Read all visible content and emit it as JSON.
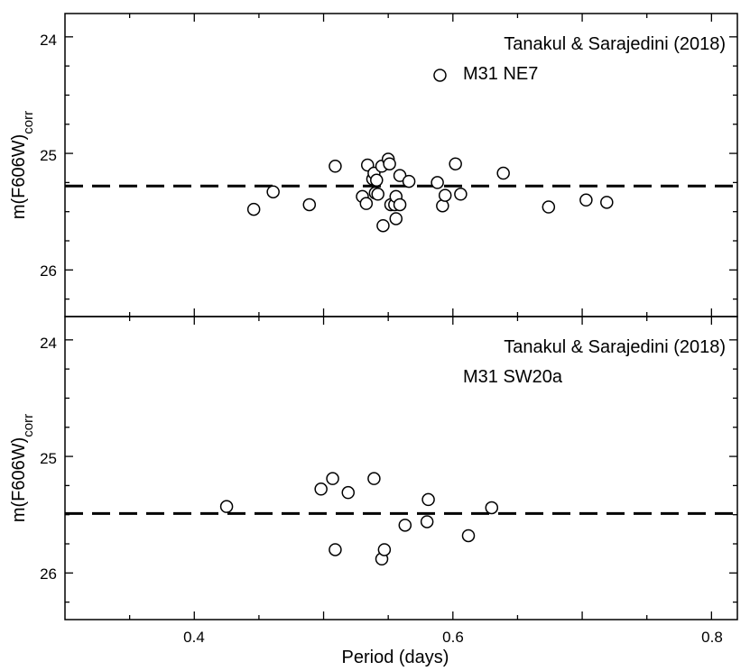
{
  "chart_data": [
    {
      "type": "scatter",
      "annotation_lines": [
        "Tanakul & Sarajedini (2018)",
        "M31 NE7"
      ],
      "ylabel": "m(F606W)",
      "ylabel_sub": "corr",
      "xlim": [
        0.3,
        0.82
      ],
      "ylim": [
        26.4,
        23.8
      ],
      "y_inverted": true,
      "y_ticks": [
        24,
        25,
        26
      ],
      "y_tick_labels": [
        "24",
        "25",
        "26"
      ],
      "reference_line": {
        "y": 25.28,
        "style": "dashed"
      },
      "marker": "open-circle",
      "series": [
        {
          "points": [
            {
              "x": 0.446,
              "y": 25.48
            },
            {
              "x": 0.461,
              "y": 25.33
            },
            {
              "x": 0.489,
              "y": 25.44
            },
            {
              "x": 0.509,
              "y": 25.11
            },
            {
              "x": 0.53,
              "y": 25.37
            },
            {
              "x": 0.533,
              "y": 25.43
            },
            {
              "x": 0.534,
              "y": 25.1
            },
            {
              "x": 0.538,
              "y": 25.22
            },
            {
              "x": 0.539,
              "y": 25.17
            },
            {
              "x": 0.54,
              "y": 25.34
            },
            {
              "x": 0.541,
              "y": 25.23
            },
            {
              "x": 0.542,
              "y": 25.35
            },
            {
              "x": 0.545,
              "y": 25.11
            },
            {
              "x": 0.546,
              "y": 25.62
            },
            {
              "x": 0.55,
              "y": 25.05
            },
            {
              "x": 0.551,
              "y": 25.09
            },
            {
              "x": 0.552,
              "y": 25.44
            },
            {
              "x": 0.555,
              "y": 25.44
            },
            {
              "x": 0.556,
              "y": 25.37
            },
            {
              "x": 0.556,
              "y": 25.56
            },
            {
              "x": 0.559,
              "y": 25.19
            },
            {
              "x": 0.559,
              "y": 25.44
            },
            {
              "x": 0.566,
              "y": 25.24
            },
            {
              "x": 0.588,
              "y": 25.25
            },
            {
              "x": 0.59,
              "y": 24.33
            },
            {
              "x": 0.592,
              "y": 25.45
            },
            {
              "x": 0.594,
              "y": 25.36
            },
            {
              "x": 0.602,
              "y": 25.09
            },
            {
              "x": 0.606,
              "y": 25.35
            },
            {
              "x": 0.639,
              "y": 25.17
            },
            {
              "x": 0.674,
              "y": 25.46
            },
            {
              "x": 0.703,
              "y": 25.4
            },
            {
              "x": 0.719,
              "y": 25.42
            }
          ]
        }
      ]
    },
    {
      "type": "scatter",
      "annotation_lines": [
        "Tanakul & Sarajedini (2018)",
        "M31 SW20a"
      ],
      "xlabel": "Period (days)",
      "ylabel": "m(F606W)",
      "ylabel_sub": "corr",
      "xlim": [
        0.3,
        0.82
      ],
      "ylim": [
        26.4,
        23.8
      ],
      "y_inverted": true,
      "x_ticks": [
        0.4,
        0.6,
        0.8
      ],
      "x_tick_labels": [
        "0.4",
        "0.6",
        "0.8"
      ],
      "y_ticks": [
        24,
        25,
        26
      ],
      "y_tick_labels": [
        "24",
        "25",
        "26"
      ],
      "reference_line": {
        "y": 25.49,
        "style": "dashed"
      },
      "marker": "open-circle",
      "series": [
        {
          "points": [
            {
              "x": 0.425,
              "y": 25.43
            },
            {
              "x": 0.498,
              "y": 25.28
            },
            {
              "x": 0.507,
              "y": 25.19
            },
            {
              "x": 0.509,
              "y": 25.8
            },
            {
              "x": 0.519,
              "y": 25.31
            },
            {
              "x": 0.539,
              "y": 25.19
            },
            {
              "x": 0.545,
              "y": 25.88
            },
            {
              "x": 0.547,
              "y": 25.8
            },
            {
              "x": 0.563,
              "y": 25.59
            },
            {
              "x": 0.58,
              "y": 25.56
            },
            {
              "x": 0.581,
              "y": 25.37
            },
            {
              "x": 0.612,
              "y": 25.68
            },
            {
              "x": 0.63,
              "y": 25.44
            }
          ]
        }
      ]
    }
  ]
}
